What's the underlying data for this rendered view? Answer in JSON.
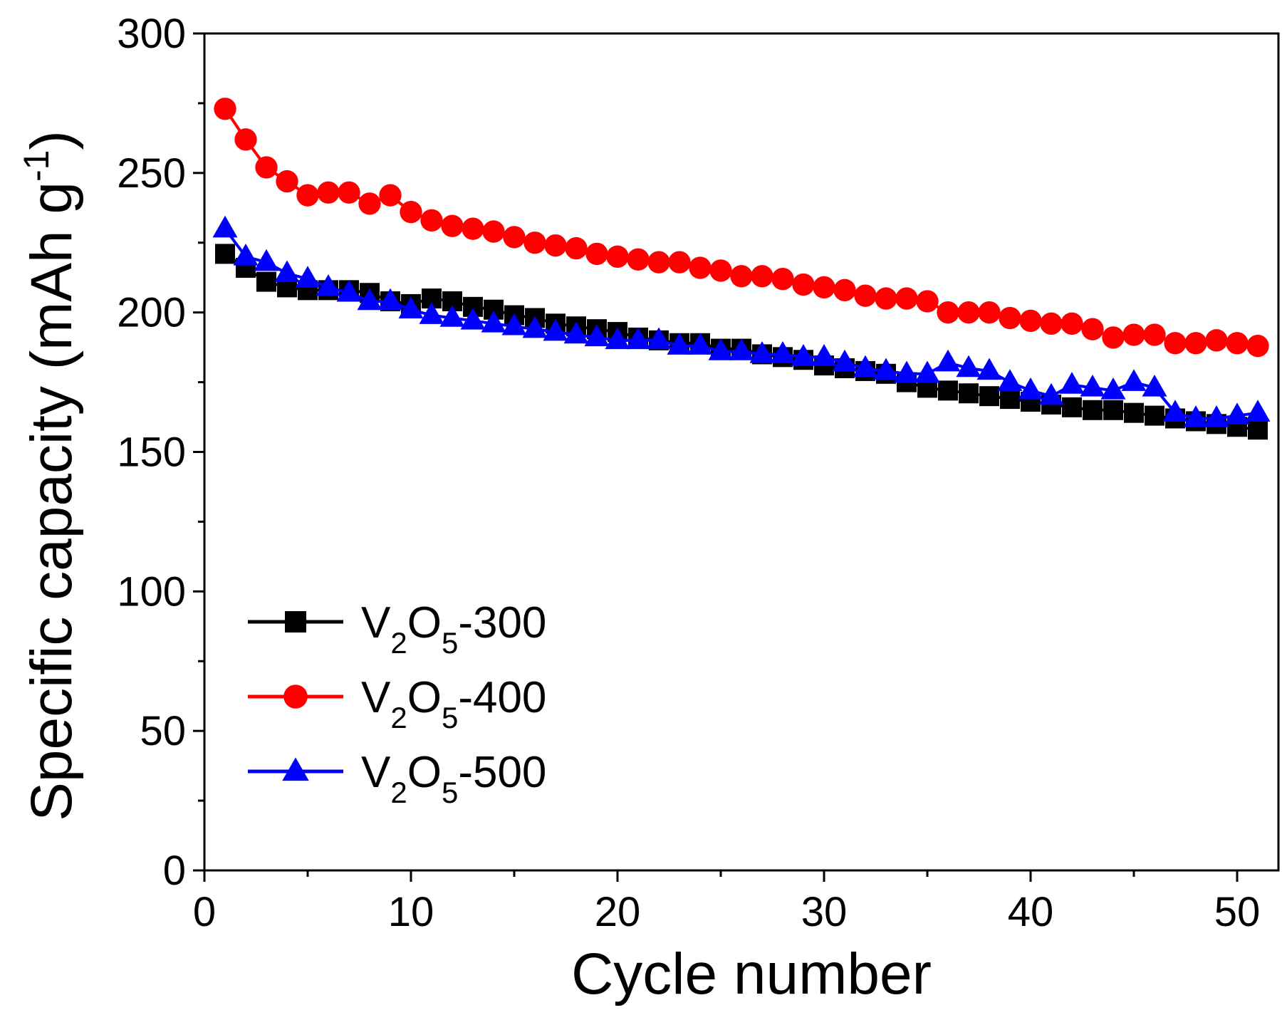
{
  "chart_data": {
    "type": "line",
    "title": "",
    "xlabel": "Cycle number",
    "ylabel": "Specific capacity (mAh g",
    "ylabel_sup": "-1",
    "ylabel_close": ")",
    "xlim": [
      0,
      52
    ],
    "ylim": [
      0,
      300
    ],
    "x_ticks": [
      0,
      10,
      20,
      30,
      40,
      50
    ],
    "y_ticks": [
      0,
      50,
      100,
      150,
      200,
      250,
      300
    ],
    "grid": false,
    "legend_position": "lower-left",
    "x": [
      1,
      2,
      3,
      4,
      5,
      6,
      7,
      8,
      9,
      10,
      11,
      12,
      13,
      14,
      15,
      16,
      17,
      18,
      19,
      20,
      21,
      22,
      23,
      24,
      25,
      26,
      27,
      28,
      29,
      30,
      31,
      32,
      33,
      34,
      35,
      36,
      37,
      38,
      39,
      40,
      41,
      42,
      43,
      44,
      45,
      46,
      47,
      48,
      49,
      50,
      51
    ],
    "series": [
      {
        "name": "V2O5-300",
        "label_base": "V",
        "label_sub1": "2",
        "label_mid": "O",
        "label_sub2": "5",
        "label_suffix": "-300",
        "color": "#000000",
        "marker": "square",
        "values": [
          221,
          216,
          211,
          209,
          208,
          208,
          208,
          207,
          204,
          203,
          205,
          204,
          202,
          201,
          199,
          198,
          196,
          195,
          194,
          193,
          191,
          190,
          189,
          189,
          187,
          187,
          185,
          184,
          183,
          181,
          180,
          179,
          178,
          175,
          173,
          172,
          171,
          170,
          169,
          168,
          167,
          166,
          165,
          165,
          164,
          163,
          162,
          161,
          160,
          159,
          158
        ]
      },
      {
        "name": "V2O5-400",
        "label_base": "V",
        "label_sub1": "2",
        "label_mid": "O",
        "label_sub2": "5",
        "label_suffix": "-400",
        "color": "#ff0000",
        "marker": "circle",
        "values": [
          273,
          262,
          252,
          247,
          242,
          243,
          243,
          239,
          242,
          236,
          233,
          231,
          230,
          229,
          227,
          225,
          224,
          223,
          221,
          220,
          219,
          218,
          218,
          216,
          215,
          213,
          213,
          212,
          210,
          209,
          208,
          206,
          205,
          205,
          204,
          200,
          200,
          200,
          198,
          197,
          196,
          196,
          194,
          191,
          192,
          192,
          189,
          189,
          190,
          189,
          188
        ]
      },
      {
        "name": "V2O5-500",
        "label_base": "V",
        "label_sub1": "2",
        "label_mid": "O",
        "label_sub2": "5",
        "label_suffix": "-500",
        "color": "#0000ff",
        "marker": "triangle",
        "values": [
          230,
          220,
          218,
          214,
          212,
          209,
          207,
          204,
          204,
          201,
          199,
          198,
          197,
          196,
          195,
          194,
          193,
          192,
          191,
          190,
          190,
          190,
          188,
          188,
          186,
          186,
          185,
          185,
          184,
          184,
          182,
          180,
          179,
          178,
          178,
          182,
          180,
          179,
          175,
          172,
          170,
          174,
          173,
          172,
          175,
          173,
          164,
          162,
          162,
          163,
          164
        ]
      }
    ]
  }
}
